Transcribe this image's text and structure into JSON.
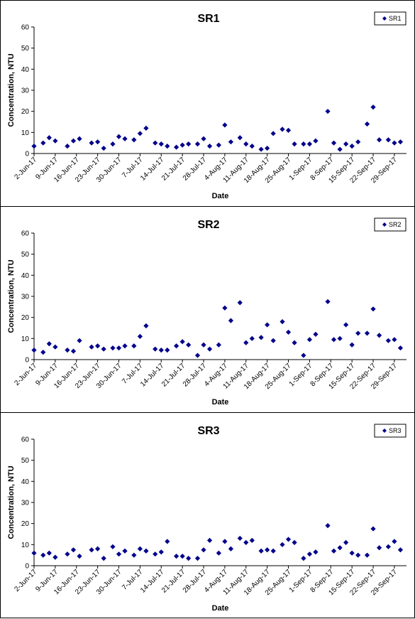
{
  "charts_style": {
    "marker_color": "#00008b",
    "axis_color": "#000000",
    "background": "#ffffff"
  },
  "chart_data": [
    {
      "type": "scatter",
      "title": "SR1",
      "xlabel": "Date",
      "ylabel": "Concentration, NTU",
      "ylim": [
        0,
        60
      ],
      "yticks": [
        "0",
        "10",
        "20",
        "30",
        "40",
        "50",
        "60"
      ],
      "xticks": [
        "2-Jun-17",
        "9-Jun-17",
        "16-Jun-17",
        "23-Jun-17",
        "30-Jun-17",
        "7-Jul-17",
        "14-Jul-17",
        "21-Jul-17",
        "28-Jul-17",
        "4-Aug-17",
        "11-Aug-17",
        "18-Aug-17",
        "25-Aug-17",
        "1-Sep-17",
        "8-Sep-17",
        "15-Sep-17",
        "22-Sep-17",
        "29-Sep-17"
      ],
      "legend": {
        "position": "top-right",
        "entries": [
          "SR1"
        ]
      },
      "grid": false,
      "series": [
        {
          "name": "SR1",
          "x": [
            "2017-06-02",
            "2017-06-05",
            "2017-06-07",
            "2017-06-09",
            "2017-06-13",
            "2017-06-15",
            "2017-06-17",
            "2017-06-21",
            "2017-06-23",
            "2017-06-25",
            "2017-06-28",
            "2017-06-30",
            "2017-07-02",
            "2017-07-05",
            "2017-07-07",
            "2017-07-09",
            "2017-07-12",
            "2017-07-14",
            "2017-07-16",
            "2017-07-19",
            "2017-07-21",
            "2017-07-23",
            "2017-07-26",
            "2017-07-28",
            "2017-07-30",
            "2017-08-02",
            "2017-08-04",
            "2017-08-06",
            "2017-08-09",
            "2017-08-11",
            "2017-08-13",
            "2017-08-16",
            "2017-08-18",
            "2017-08-20",
            "2017-08-23",
            "2017-08-25",
            "2017-08-27",
            "2017-08-30",
            "2017-09-01",
            "2017-09-03",
            "2017-09-07",
            "2017-09-09",
            "2017-09-11",
            "2017-09-13",
            "2017-09-15",
            "2017-09-17",
            "2017-09-20",
            "2017-09-22",
            "2017-09-24",
            "2017-09-27",
            "2017-09-29",
            "2017-10-01"
          ],
          "values": [
            3.5,
            5,
            7.5,
            6,
            3.5,
            6,
            7,
            5,
            5.5,
            2.5,
            4.5,
            8,
            7,
            6.5,
            9.5,
            12,
            5,
            4.5,
            3.5,
            3,
            4,
            4.5,
            4.5,
            7,
            3.5,
            4,
            13.5,
            5.5,
            7.5,
            4.5,
            3.5,
            2,
            2.5,
            9.5,
            11.5,
            11,
            4.5,
            4.5,
            4.5,
            6,
            20,
            5,
            2,
            4.5,
            3.5,
            5.5,
            14,
            22,
            6.5,
            6.5,
            5,
            5.5
          ]
        }
      ]
    },
    {
      "type": "scatter",
      "title": "SR2",
      "xlabel": "Date",
      "ylabel": "Concentration, NTU",
      "ylim": [
        0,
        60
      ],
      "yticks": [
        "0",
        "10",
        "20",
        "30",
        "40",
        "50",
        "60"
      ],
      "xticks": [
        "2-Jun-17",
        "9-Jun-17",
        "16-Jun-17",
        "23-Jun-17",
        "30-Jun-17",
        "7-Jul-17",
        "14-Jul-17",
        "21-Jul-17",
        "28-Jul-17",
        "4-Aug-17",
        "11-Aug-17",
        "18-Aug-17",
        "25-Aug-17",
        "1-Sep-17",
        "8-Sep-17",
        "15-Sep-17",
        "22-Sep-17",
        "29-Sep-17"
      ],
      "legend": {
        "position": "top-right",
        "entries": [
          "SR2"
        ]
      },
      "grid": false,
      "series": [
        {
          "name": "SR2",
          "x": [
            "2017-06-02",
            "2017-06-05",
            "2017-06-07",
            "2017-06-09",
            "2017-06-13",
            "2017-06-15",
            "2017-06-17",
            "2017-06-21",
            "2017-06-23",
            "2017-06-25",
            "2017-06-28",
            "2017-06-30",
            "2017-07-02",
            "2017-07-05",
            "2017-07-07",
            "2017-07-09",
            "2017-07-12",
            "2017-07-14",
            "2017-07-16",
            "2017-07-19",
            "2017-07-21",
            "2017-07-23",
            "2017-07-26",
            "2017-07-28",
            "2017-07-30",
            "2017-08-02",
            "2017-08-04",
            "2017-08-06",
            "2017-08-09",
            "2017-08-11",
            "2017-08-13",
            "2017-08-16",
            "2017-08-18",
            "2017-08-20",
            "2017-08-23",
            "2017-08-25",
            "2017-08-27",
            "2017-08-30",
            "2017-09-01",
            "2017-09-03",
            "2017-09-07",
            "2017-09-09",
            "2017-09-11",
            "2017-09-13",
            "2017-09-15",
            "2017-09-17",
            "2017-09-20",
            "2017-09-22",
            "2017-09-24",
            "2017-09-27",
            "2017-09-29",
            "2017-10-01"
          ],
          "values": [
            4.5,
            3.5,
            7.5,
            6,
            4.5,
            4,
            9,
            6,
            6.5,
            5,
            5.5,
            5.5,
            6.5,
            6.5,
            11,
            16,
            5,
            4.5,
            4.5,
            6.5,
            8.5,
            7,
            2,
            7,
            5,
            7,
            24.5,
            18.5,
            27,
            8,
            10,
            10.5,
            16.5,
            9,
            18,
            13,
            8,
            2,
            9.5,
            12,
            27.5,
            9.5,
            10,
            16.5,
            7,
            12.5,
            12.5,
            24,
            11.5,
            9,
            9.5,
            5.5
          ]
        }
      ]
    },
    {
      "type": "scatter",
      "title": "SR3",
      "xlabel": "Date",
      "ylabel": "Concentration, NTU",
      "ylim": [
        0,
        60
      ],
      "yticks": [
        "0",
        "10",
        "20",
        "30",
        "40",
        "50",
        "60"
      ],
      "xticks": [
        "2-Jun-17",
        "9-Jun-17",
        "16-Jun-17",
        "23-Jun-17",
        "30-Jun-17",
        "7-Jul-17",
        "14-Jul-17",
        "21-Jul-17",
        "28-Jul-17",
        "4-Aug-17",
        "11-Aug-17",
        "18-Aug-17",
        "25-Aug-17",
        "1-Sep-17",
        "8-Sep-17",
        "15-Sep-17",
        "22-Sep-17",
        "29-Sep-17"
      ],
      "legend": {
        "position": "top-right",
        "entries": [
          "SR3"
        ]
      },
      "grid": false,
      "series": [
        {
          "name": "SR3",
          "x": [
            "2017-06-02",
            "2017-06-05",
            "2017-06-07",
            "2017-06-09",
            "2017-06-13",
            "2017-06-15",
            "2017-06-17",
            "2017-06-21",
            "2017-06-23",
            "2017-06-25",
            "2017-06-28",
            "2017-06-30",
            "2017-07-02",
            "2017-07-05",
            "2017-07-07",
            "2017-07-09",
            "2017-07-12",
            "2017-07-14",
            "2017-07-16",
            "2017-07-19",
            "2017-07-21",
            "2017-07-23",
            "2017-07-26",
            "2017-07-28",
            "2017-07-30",
            "2017-08-02",
            "2017-08-04",
            "2017-08-06",
            "2017-08-09",
            "2017-08-11",
            "2017-08-13",
            "2017-08-16",
            "2017-08-18",
            "2017-08-20",
            "2017-08-23",
            "2017-08-25",
            "2017-08-27",
            "2017-08-30",
            "2017-09-01",
            "2017-09-03",
            "2017-09-07",
            "2017-09-09",
            "2017-09-11",
            "2017-09-13",
            "2017-09-15",
            "2017-09-17",
            "2017-09-20",
            "2017-09-22",
            "2017-09-24",
            "2017-09-27",
            "2017-09-29",
            "2017-10-01"
          ],
          "values": [
            6,
            5,
            6,
            4,
            5.5,
            7.5,
            4.5,
            7.5,
            8,
            3.5,
            9,
            5.5,
            7,
            5,
            8,
            7,
            5.5,
            6.5,
            11.5,
            4.5,
            4.5,
            3.5,
            3.5,
            7.5,
            12,
            6,
            11.5,
            8,
            13,
            11,
            12,
            7,
            7.5,
            7,
            10,
            12.5,
            11,
            3.5,
            5.5,
            6.5,
            19,
            7,
            8.5,
            11,
            6,
            5,
            5,
            17.5,
            8.5,
            9,
            11.5,
            7.5
          ]
        }
      ]
    }
  ]
}
